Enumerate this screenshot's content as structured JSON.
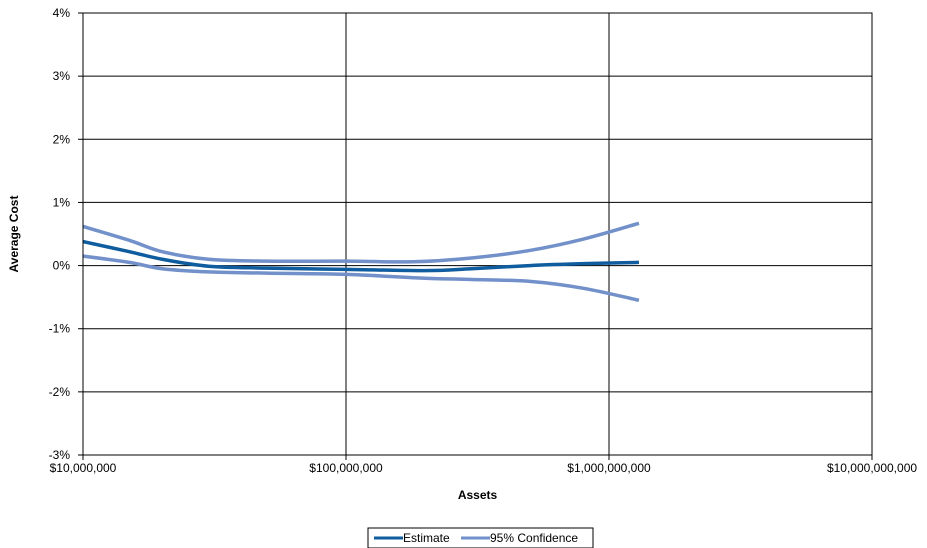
{
  "chart_data": {
    "type": "line",
    "title": "",
    "xlabel": "Assets",
    "ylabel": "Average Cost",
    "x_scale": "log",
    "xlim": [
      10000000,
      10000000000
    ],
    "ylim": [
      -3,
      4
    ],
    "y_unit": "percent",
    "grid": true,
    "legend_placement": "bottom-center",
    "x_ticks": [
      10000000,
      100000000,
      1000000000,
      10000000000
    ],
    "x_tick_labels": [
      "$10,000,000",
      "$100,000,000",
      "$1,000,000,000",
      "$10,000,000,000"
    ],
    "y_ticks": [
      4,
      3,
      2,
      1,
      0,
      -1,
      -2,
      -3
    ],
    "y_tick_labels": [
      "4%",
      "3%",
      "2%",
      "1%",
      "0%",
      "-1%",
      "-2%",
      "-3%"
    ],
    "legend": [
      "Estimate",
      "95% Confidence"
    ],
    "colors": {
      "estimate": "#0f5c9e",
      "confidence": "#7290c9"
    },
    "series": [
      {
        "name": "Estimate",
        "color": "#0f5c9e",
        "x": [
          10000000,
          15000000,
          20000000,
          30000000,
          50000000,
          100000000,
          200000000,
          300000000,
          500000000,
          800000000,
          1300000000
        ],
        "y": [
          0.38,
          0.22,
          0.1,
          -0.01,
          -0.04,
          -0.06,
          -0.08,
          -0.05,
          0.0,
          0.03,
          0.05
        ]
      },
      {
        "name": "95% Confidence",
        "color": "#7290c9",
        "x": [
          10000000,
          15000000,
          20000000,
          30000000,
          50000000,
          100000000,
          180000000,
          300000000,
          500000000,
          800000000,
          1300000000
        ],
        "y": [
          0.62,
          0.4,
          0.22,
          0.1,
          0.07,
          0.07,
          0.06,
          0.12,
          0.24,
          0.42,
          0.67
        ]
      },
      {
        "name": "95% Confidence",
        "color": "#7290c9",
        "x": [
          10000000,
          15000000,
          20000000,
          30000000,
          50000000,
          100000000,
          200000000,
          300000000,
          500000000,
          800000000,
          1300000000
        ],
        "y": [
          0.15,
          0.05,
          -0.05,
          -0.1,
          -0.12,
          -0.14,
          -0.2,
          -0.22,
          -0.25,
          -0.36,
          -0.55
        ]
      }
    ]
  }
}
